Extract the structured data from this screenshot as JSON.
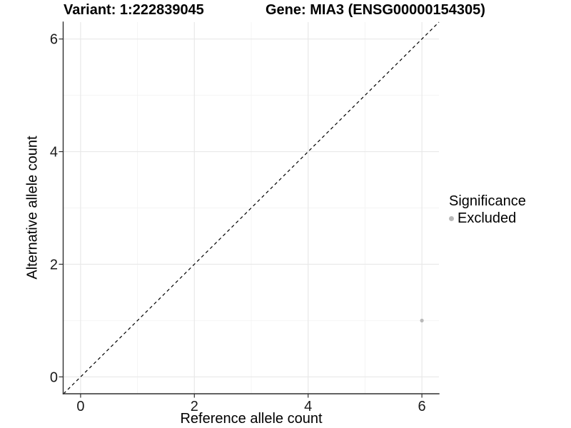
{
  "header": {
    "variant_title": "Variant: 1:222839045",
    "gene_title": "Gene: MIA3 (ENSG00000154305)"
  },
  "chart_data": {
    "type": "scatter",
    "title": "Variant: 1:222839045   Gene: MIA3 (ENSG00000154305)",
    "xlabel": "Reference allele count",
    "ylabel": "Alternative allele count",
    "xlim": [
      -0.3,
      6.3
    ],
    "ylim": [
      -0.3,
      6.3
    ],
    "x_ticks": [
      0,
      2,
      4,
      6
    ],
    "y_ticks": [
      0,
      2,
      4,
      6
    ],
    "x_minor_ticks": [
      1,
      3,
      5
    ],
    "y_minor_ticks": [
      1,
      3,
      5
    ],
    "grid": "major and minor, light gray on white",
    "series": [
      {
        "name": "Excluded",
        "color": "#b9b9b9",
        "points": [
          {
            "x": 6,
            "y": 1
          }
        ]
      }
    ],
    "reference_line": {
      "slope": 1,
      "intercept": 0,
      "linetype": "dashed",
      "color": "#000000"
    },
    "legend": {
      "title": "Significance",
      "position": "right",
      "entries": [
        {
          "label": "Excluded",
          "color": "#b9b9b9"
        }
      ]
    }
  }
}
